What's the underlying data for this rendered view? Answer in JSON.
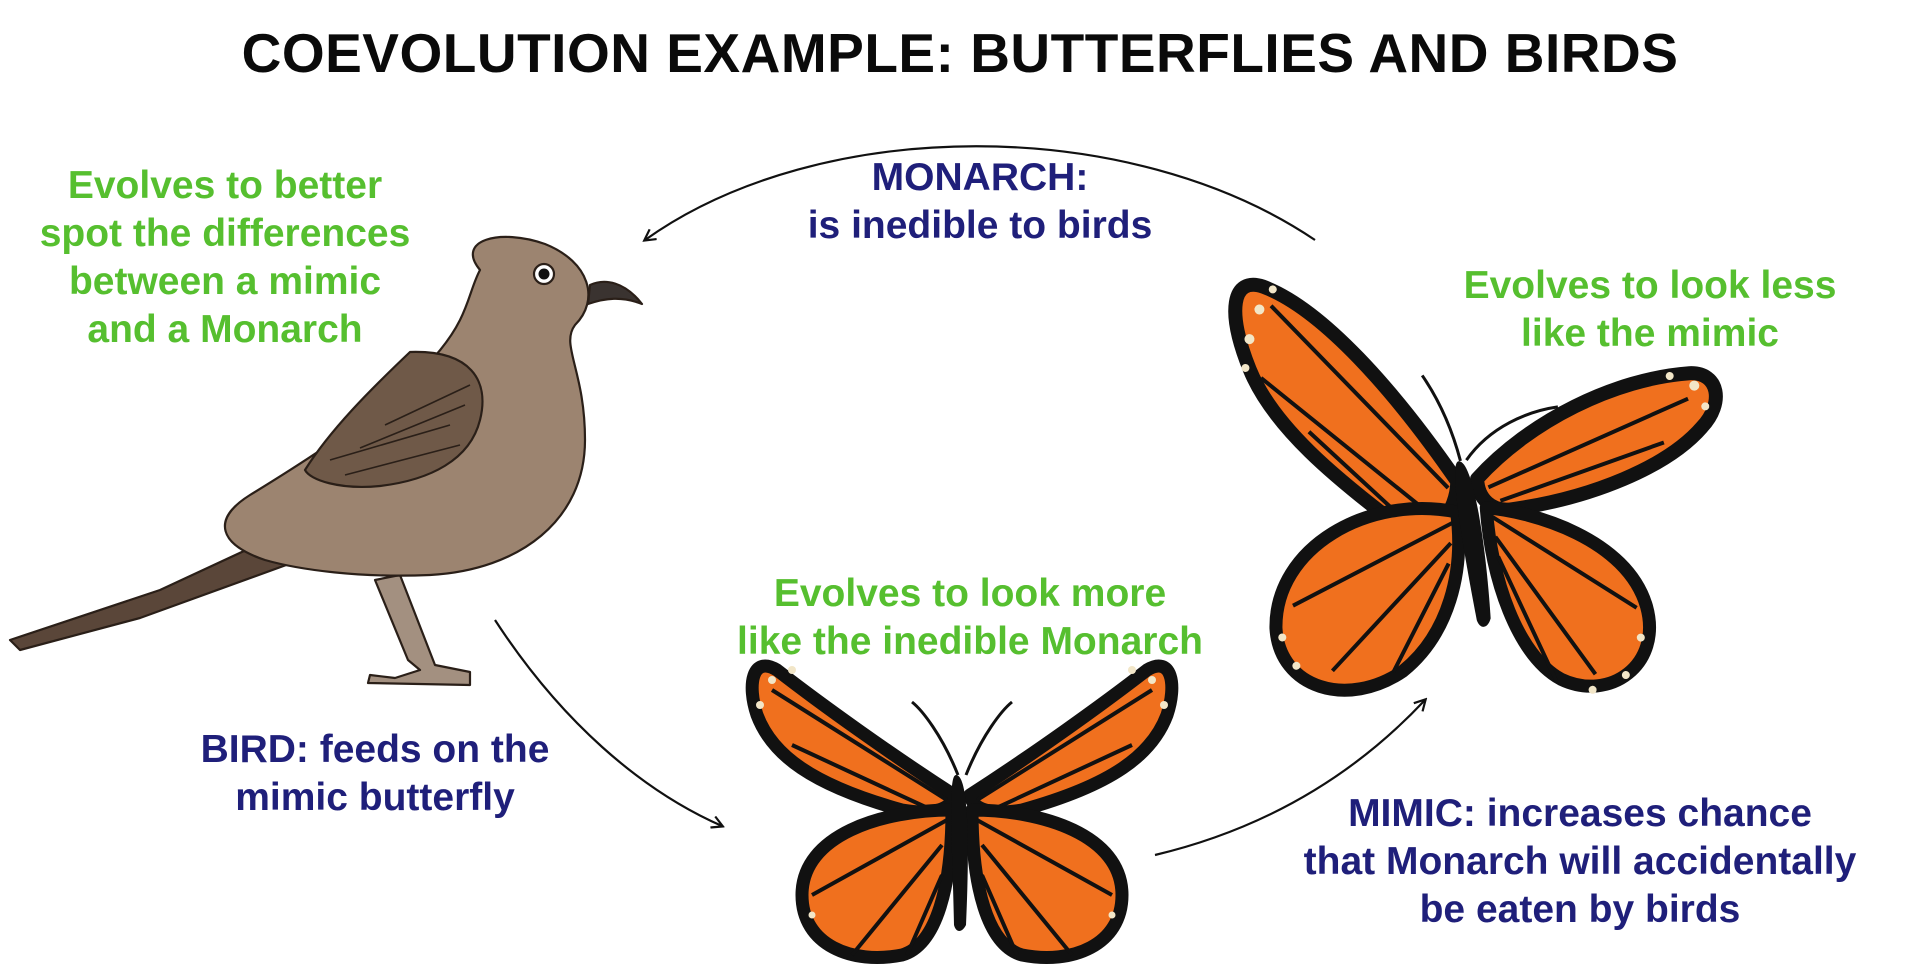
{
  "title": "COEVOLUTION EXAMPLE: BUTTERFLIES AND BIRDS",
  "colors": {
    "evolution_text": "#56bf2f",
    "role_text": "#1f1f7a",
    "title_text": "#0a0a0a",
    "bird_body": "#9c8470",
    "bird_wing": "#6f5948",
    "butterfly_orange": "#f0701e",
    "butterfly_black": "#111111",
    "butterfly_spots": "#f2e6c8"
  },
  "bird": {
    "evolution_lines": [
      "Evolves to better",
      "spot the differences",
      "between a mimic",
      "and a Monarch"
    ],
    "role_lines": [
      "BIRD: feeds on the",
      "mimic butterfly"
    ]
  },
  "monarch": {
    "role_lines": [
      "MONARCH:",
      "is inedible to birds"
    ],
    "evolution_lines": [
      "Evolves to look less",
      "like the mimic"
    ]
  },
  "mimic": {
    "evolution_lines": [
      "Evolves to look more",
      "like the inedible Monarch"
    ],
    "role_lines": [
      "MIMIC: increases chance",
      "that Monarch will accidentally",
      "be eaten by birds"
    ]
  }
}
